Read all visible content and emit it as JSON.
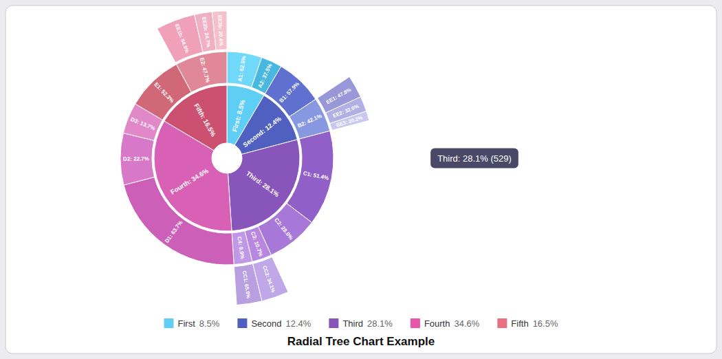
{
  "chart_data": {
    "type": "sunburst",
    "title": "Radial Tree Chart Example",
    "annotations": [
      "Third: 28.1% (529)"
    ],
    "levels": [
      {
        "categories": [
          "First",
          "Second",
          "Third",
          "Fourth",
          "Fifth"
        ],
        "values": [
          8.5,
          12.4,
          28.1,
          34.6,
          16.5
        ],
        "value_labels": [
          "First: 8.5%",
          "Second: 12.4%",
          "Third: 28.1%",
          "Fourth: 34.6%",
          "Fifth: 16.5%"
        ],
        "colors": [
          "#5ecef5",
          "#5060c0",
          "#8855bb",
          "#d860b5",
          "#cc5070"
        ]
      },
      {
        "categories": [
          "A1",
          "A2",
          "B1",
          "B2",
          "C1",
          "C2",
          "C3",
          "C4",
          "D1",
          "D2",
          "D3",
          "E1",
          "E2"
        ],
        "values": [
          62.5,
          37.5,
          57.9,
          42.1,
          51.4,
          28.0,
          10.7,
          9.9,
          63.7,
          22.7,
          13.7,
          52.3,
          47.7
        ],
        "parents": [
          "First",
          "First",
          "Second",
          "Second",
          "Third",
          "Third",
          "Third",
          "Third",
          "Fourth",
          "Fourth",
          "Fourth",
          "Fifth",
          "Fifth"
        ],
        "value_labels": [
          "A1: 62.5%",
          "A2: 37.5%",
          "B1: 57.9%",
          "B2: 42.1%",
          "C1: 51.4%",
          "C2: 28.0%",
          "C3: 10.7%",
          "C4: 9.9%",
          "D1: 63.7%",
          "D2: 22.7%",
          "D3: 13.7%",
          "E1: 52.3%",
          "E2: 47.7%"
        ],
        "colors": [
          "#70d8f8",
          "#48b8e0",
          "#6070d0",
          "#8898e0",
          "#9060c8",
          "#a878d8",
          "#b888e0",
          "#c098e8",
          "#cc60b8",
          "#d878c8",
          "#e088c8",
          "#d06878",
          "#e08898"
        ]
      },
      {
        "categories": [
          "EE1",
          "EE2",
          "EE3",
          "CC1",
          "CC2",
          "EE1b",
          "EE2b",
          "EE3b"
        ],
        "values": [
          47.8,
          32.0,
          20.2,
          65.9,
          34.1,
          54.9,
          24.7,
          20.4
        ],
        "parents": [
          "B2",
          "B2",
          "B2",
          "C4",
          "C3",
          "E2",
          "E2",
          "E2"
        ],
        "value_labels": [
          "EE1: 47.8%",
          "EE2: 32.0%",
          "EE3: 20.2%",
          "CC1: 65.9%",
          "CC2: 34.1%",
          "EE1b: 54.9%",
          "EE2b: 24.7%",
          "EE3b: 20.4%"
        ],
        "colors": [
          "#9898d8",
          "#b0b0e4",
          "#c8c8f0",
          "#b8a0e0",
          "#c0a8e8",
          "#f0a0b8",
          "#f0b0c4",
          "#f4c0cc"
        ]
      }
    ],
    "legend_items": {
      "labels": [
        "First",
        "Second",
        "Third",
        "Fourth",
        "Fifth"
      ],
      "value_labels": [
        "8.5%",
        "12.4%",
        "28.1%",
        "34.6%",
        "16.5%"
      ],
      "colors": [
        "#5ecef5",
        "#5060c0",
        "#8855bb",
        "#e855aa",
        "#e87080"
      ]
    }
  }
}
